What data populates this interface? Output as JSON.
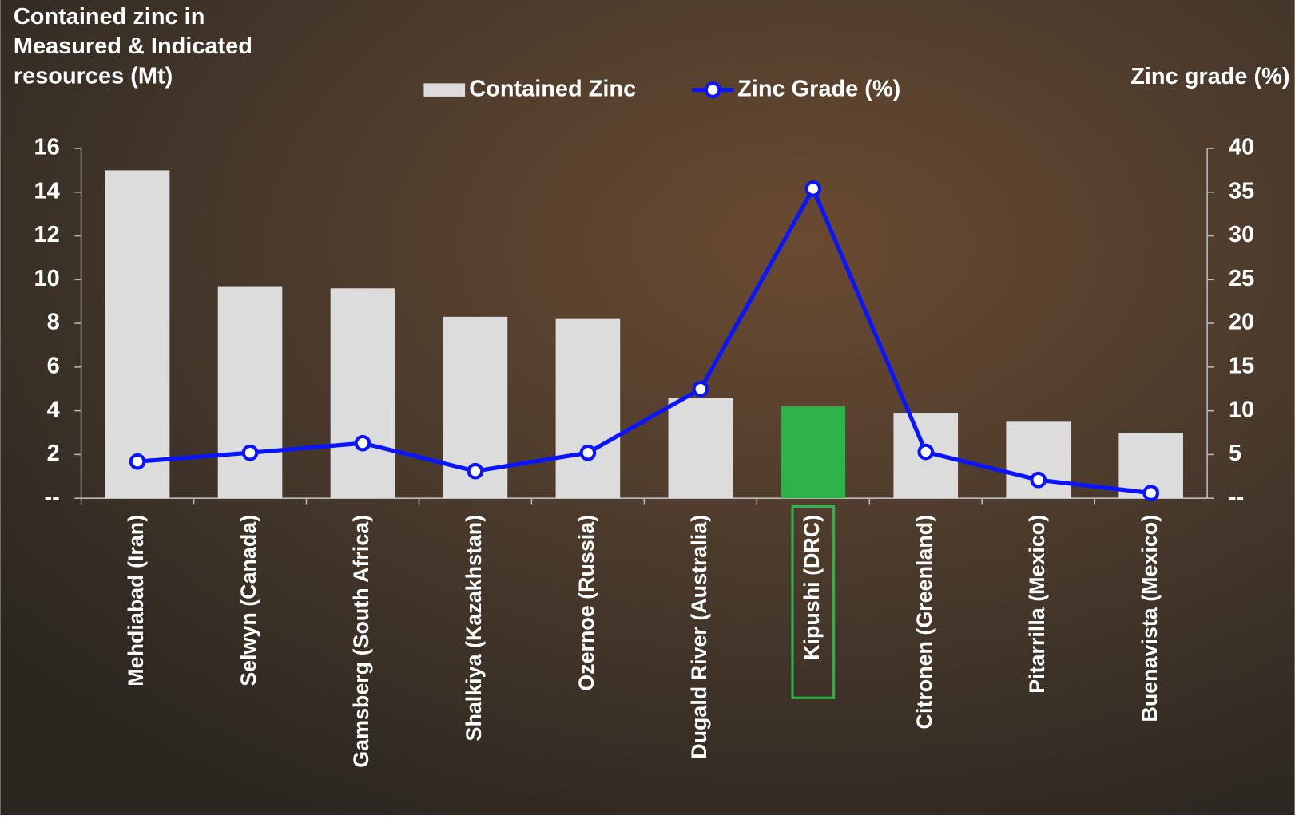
{
  "chart_data": {
    "type": "combo",
    "y_title": "Contained zinc in Measured & Indicated resources (Mt)",
    "y2_title": "Zinc grade (%)",
    "categories": [
      "Mehdiabad (Iran)",
      "Selwyn (Canada)",
      "Gamsberg (South Africa)",
      "Shalkiya (Kazakhstan)",
      "Ozernoe (Russia)",
      "Dugald River (Australia)",
      "Kipushi (DRC)",
      "Citronen (Greenland)",
      "Pitarrilla (Mexico)",
      "Buenavista (Mexico)"
    ],
    "series": [
      {
        "name": "Contained Zinc",
        "type": "bar",
        "color": "#dcdcdc",
        "bar_colors": [
          "#dcdcdc",
          "#dcdcdc",
          "#dcdcdc",
          "#dcdcdc",
          "#dcdcdc",
          "#dcdcdc",
          "#2db34a",
          "#dcdcdc",
          "#dcdcdc",
          "#dcdcdc"
        ],
        "values": [
          15.0,
          9.7,
          9.6,
          8.3,
          8.2,
          4.6,
          4.2,
          3.9,
          3.5,
          3.0
        ]
      },
      {
        "name": "Zinc Grade (%)",
        "type": "line",
        "axis": "y2",
        "color": "#0a14ff",
        "values": [
          4.2,
          5.2,
          6.3,
          3.1,
          5.2,
          12.5,
          35.4,
          5.3,
          2.1,
          0.6
        ]
      }
    ],
    "ylim": [
      0,
      16
    ],
    "yticks": [
      {
        "value": 0,
        "label": "--"
      },
      2,
      4,
      6,
      8,
      10,
      12,
      14,
      16
    ],
    "y2lim": [
      0,
      40
    ],
    "y2ticks": [
      {
        "value": 0,
        "label": "--"
      },
      5,
      10,
      15,
      20,
      25,
      30,
      35,
      40
    ]
  }
}
